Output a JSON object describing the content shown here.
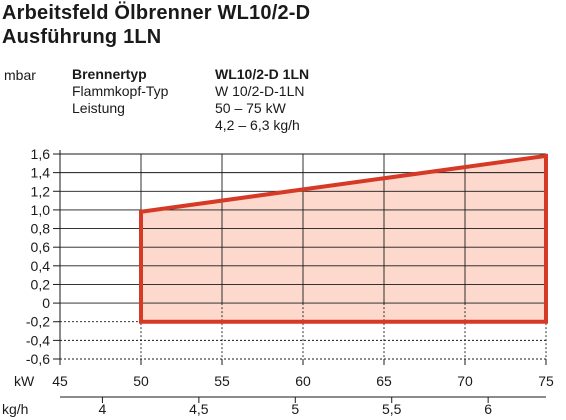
{
  "title": "Arbeitsfeld Ölbrenner WL10/2-D",
  "subtitle": "Ausführung 1LN",
  "info": {
    "labels": [
      "Brennertyp",
      "Flammkopf-Typ",
      "Leistung"
    ],
    "values": [
      "WL10/2-D 1LN",
      "W 10/2-D-1LN",
      "50 – 75 kW",
      "4,2 – 6,3 kg/h"
    ]
  },
  "colors": {
    "outline": "#d63a26",
    "fill": "#fcd9cc",
    "grid": "#1a1a1a"
  },
  "chart_data": {
    "type": "area",
    "ylabel": "mbar",
    "xlabel": "kW",
    "x2label": "kg/h",
    "ylim": [
      -0.6,
      1.6
    ],
    "xlim": [
      45,
      75
    ],
    "grid": true,
    "y_ticks": [
      1.6,
      1.4,
      1.2,
      1.0,
      0.8,
      0.6,
      0.4,
      0.2,
      0,
      -0.2,
      -0.4,
      -0.6
    ],
    "y_tick_labels": [
      "1,6",
      "1,4",
      "1,2",
      "1,0",
      "0,8",
      "0,6",
      "0,4",
      "0,2",
      "0",
      "-0,2",
      "-0,4",
      "-0,6"
    ],
    "x_ticks": [
      45,
      50,
      55,
      60,
      65,
      70,
      75
    ],
    "x_tick_labels": [
      "45",
      "50",
      "55",
      "60",
      "65",
      "70",
      "75"
    ],
    "x2_ticks": [
      4,
      4.5,
      5,
      5.5,
      6
    ],
    "x2_tick_labels": [
      "4",
      "4,5",
      "5",
      "5,5",
      "6"
    ],
    "polygon": [
      {
        "x": 50,
        "y": -0.2
      },
      {
        "x": 50,
        "y": 0.98
      },
      {
        "x": 75,
        "y": 1.58
      },
      {
        "x": 75,
        "y": -0.2
      }
    ]
  }
}
